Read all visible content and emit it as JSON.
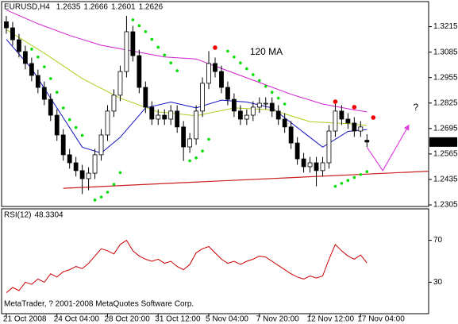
{
  "chart_data": [
    {
      "type": "candlestick",
      "title": "EURUSD,H4",
      "categories": [
        "21 Oct 2008",
        null,
        null,
        null,
        null,
        null,
        null,
        null,
        "24 Oct 04:00",
        null,
        null,
        null,
        null,
        null,
        null,
        null,
        "28 Oct 20:00",
        null,
        null,
        null,
        null,
        null,
        null,
        null,
        "31 Oct 12:00",
        null,
        null,
        null,
        null,
        null,
        null,
        null,
        "5 Nov 04:00",
        null,
        null,
        null,
        null,
        null,
        null,
        null,
        "7 Nov 20:00",
        null,
        null,
        null,
        null,
        null,
        null,
        null,
        "12 Nov 12:00",
        null,
        null,
        null,
        null,
        null,
        null,
        null,
        "17 Nov 04:00",
        null
      ],
      "open": [
        1.324,
        1.3209,
        1.3148,
        1.3088,
        1.3027,
        1.2966,
        1.2905,
        1.2844,
        1.2763,
        1.2662,
        1.2561,
        1.252,
        1.248,
        1.2439,
        1.2467,
        1.2561,
        1.2662,
        1.2784,
        1.2865,
        1.2986,
        1.3189,
        1.3067,
        1.2905,
        1.2804,
        1.2743,
        1.2763,
        1.2743,
        1.2784,
        1.2703,
        1.2601,
        1.2642,
        1.2784,
        1.2926,
        1.3027,
        1.2986,
        1.2905,
        1.2844,
        1.2784,
        1.2743,
        1.2763,
        1.2804,
        1.2824,
        1.2824,
        1.2784,
        1.2743,
        1.2703,
        1.2621,
        1.254,
        1.25,
        1.252,
        1.248,
        1.252,
        1.2682,
        1.2784,
        1.2743,
        1.2723,
        1.2682,
        1.2635
      ],
      "high": [
        1.327,
        1.3239,
        1.3178,
        1.3118,
        1.3057,
        1.2996,
        1.2935,
        1.2874,
        1.2793,
        1.2692,
        1.2591,
        1.255,
        1.251,
        1.2497,
        1.2591,
        1.2692,
        1.2814,
        1.2895,
        1.3016,
        1.327,
        1.3219,
        1.3097,
        1.2935,
        1.2834,
        1.2793,
        1.2793,
        1.2814,
        1.2814,
        1.2733,
        1.2672,
        1.2814,
        1.2956,
        1.309,
        1.3057,
        1.3016,
        1.2935,
        1.2874,
        1.2814,
        1.2793,
        1.2834,
        1.2854,
        1.2854,
        1.2854,
        1.2814,
        1.2773,
        1.2733,
        1.2651,
        1.257,
        1.255,
        1.255,
        1.255,
        1.2712,
        1.283,
        1.2814,
        1.2773,
        1.2753,
        1.2733,
        1.2666
      ],
      "low": [
        1.3179,
        1.3118,
        1.3058,
        1.2997,
        1.2936,
        1.2875,
        1.2814,
        1.2733,
        1.2632,
        1.2531,
        1.249,
        1.245,
        1.236,
        1.238,
        1.2437,
        1.2531,
        1.2632,
        1.2754,
        1.2835,
        1.2956,
        1.3037,
        1.2875,
        1.2774,
        1.2713,
        1.2713,
        1.2713,
        1.2713,
        1.2673,
        1.253,
        1.2571,
        1.2612,
        1.2754,
        1.2896,
        1.2956,
        1.2875,
        1.2814,
        1.2754,
        1.2713,
        1.2713,
        1.2733,
        1.2774,
        1.2794,
        1.2754,
        1.2713,
        1.2673,
        1.2591,
        1.251,
        1.247,
        1.247,
        1.24,
        1.245,
        1.249,
        1.2652,
        1.2713,
        1.2693,
        1.2652,
        1.2652,
        1.2601
      ],
      "close": [
        1.3209,
        1.3148,
        1.3088,
        1.3027,
        1.2966,
        1.2905,
        1.2844,
        1.2763,
        1.2662,
        1.2561,
        1.252,
        1.248,
        1.2439,
        1.2467,
        1.2561,
        1.2662,
        1.2784,
        1.2865,
        1.2986,
        1.3189,
        1.3067,
        1.2905,
        1.2804,
        1.2743,
        1.2763,
        1.2743,
        1.2784,
        1.2703,
        1.2601,
        1.2642,
        1.2784,
        1.2926,
        1.3027,
        1.2986,
        1.2905,
        1.2844,
        1.2784,
        1.2743,
        1.2763,
        1.2804,
        1.2824,
        1.2824,
        1.2784,
        1.2743,
        1.2703,
        1.2621,
        1.254,
        1.25,
        1.252,
        1.248,
        1.252,
        1.2682,
        1.2784,
        1.2743,
        1.2723,
        1.2682,
        1.2703,
        1.2626
      ],
      "xlim": [
        -0.75,
        66.75
      ],
      "ylim": [
        1.2297,
        1.3343
      ],
      "yticks": [
        1.3215,
        1.3085,
        1.2955,
        1.2825,
        1.2695,
        1.2565,
        1.2435,
        1.2305
      ],
      "moving_averages": [
        {
          "color": "#d020d0",
          "x": [
            0,
            5,
            10,
            15,
            20,
            25,
            30,
            35,
            40,
            45,
            50,
            55,
            57
          ],
          "values": [
            1.33,
            1.323,
            1.317,
            1.312,
            1.309,
            1.306,
            1.305,
            1.299,
            1.293,
            1.287,
            1.282,
            1.279,
            1.278
          ]
        },
        {
          "color": "#1010c0",
          "x": [
            0,
            4,
            8,
            12,
            15,
            18,
            22,
            26,
            30,
            34,
            38,
            42,
            46,
            50,
            54,
            57
          ],
          "values": [
            1.315,
            1.3,
            1.28,
            1.26,
            1.257,
            1.265,
            1.28,
            1.283,
            1.28,
            1.284,
            1.283,
            1.28,
            1.27,
            1.26,
            1.268,
            1.269
          ]
        },
        {
          "color": "#a8d020",
          "x": [
            0,
            6,
            12,
            18,
            24,
            30,
            36,
            42,
            48,
            54,
            57
          ],
          "values": [
            1.32,
            1.308,
            1.295,
            1.285,
            1.278,
            1.276,
            1.28,
            1.279,
            1.273,
            1.272,
            1.271
          ]
        }
      ],
      "sar": {
        "color": "#00dd00",
        "x": [
          4,
          5,
          6,
          7,
          8,
          9,
          10,
          11,
          12,
          14,
          15,
          16,
          17,
          18,
          20,
          21,
          22,
          23,
          24,
          25,
          26,
          27,
          29,
          30,
          31,
          32,
          35,
          36,
          37,
          38,
          39,
          40,
          41,
          42,
          43,
          44,
          52,
          53,
          54,
          55,
          56,
          57
        ],
        "values": [
          1.31,
          1.306,
          1.301,
          1.295,
          1.288,
          1.28,
          1.274,
          1.27,
          1.266,
          1.233,
          1.2345,
          1.237,
          1.241,
          1.247,
          1.325,
          1.322,
          1.319,
          1.315,
          1.311,
          1.307,
          1.303,
          1.299,
          1.253,
          1.2545,
          1.258,
          1.264,
          1.309,
          1.306,
          1.303,
          1.3,
          1.297,
          1.294,
          1.291,
          1.288,
          1.285,
          1.282,
          1.24,
          1.2415,
          1.243,
          1.2445,
          1.246,
          1.2475
        ]
      },
      "markers": {
        "color": "#ee0000",
        "x": [
          33,
          52,
          55,
          58
        ],
        "values": [
          1.3108,
          1.2832,
          1.2804,
          1.2751
        ]
      },
      "trendline": {
        "color": "#cc2020",
        "x": [
          9,
          66.75
        ],
        "values": [
          1.239,
          1.2477
        ]
      },
      "forecast": {
        "color": "#e040e0",
        "x": [
          57,
          59.5,
          63.6
        ],
        "values": [
          1.26,
          1.248,
          1.2711
        ]
      },
      "annotations": [
        {
          "text": "120 MA",
          "x": 38.5,
          "y": 1.3085,
          "color": "#d020d0"
        },
        {
          "text": "?",
          "x": 64.3,
          "y": 1.28,
          "color": "#dd0000"
        }
      ]
    },
    {
      "type": "line",
      "title": "RSI(12)",
      "color": "#cc0000",
      "values": [
        20,
        25,
        22,
        30,
        28,
        33,
        30,
        38,
        35,
        40,
        42,
        45,
        43,
        48,
        55,
        62,
        60,
        57,
        66,
        70,
        60,
        55,
        52,
        50,
        52,
        48,
        50,
        45,
        42,
        47,
        58,
        62,
        64,
        58,
        52,
        48,
        50,
        47,
        50,
        52,
        55,
        54,
        50,
        46,
        42,
        38,
        35,
        33,
        36,
        34,
        36,
        52,
        66,
        60,
        55,
        52,
        56,
        48.3304
      ],
      "ylim": [
        0,
        100
      ],
      "yticks": [
        70,
        30
      ]
    }
  ],
  "footer": "MetaTrader, ? 2001-2008 MetaQuotes Software Corp."
}
